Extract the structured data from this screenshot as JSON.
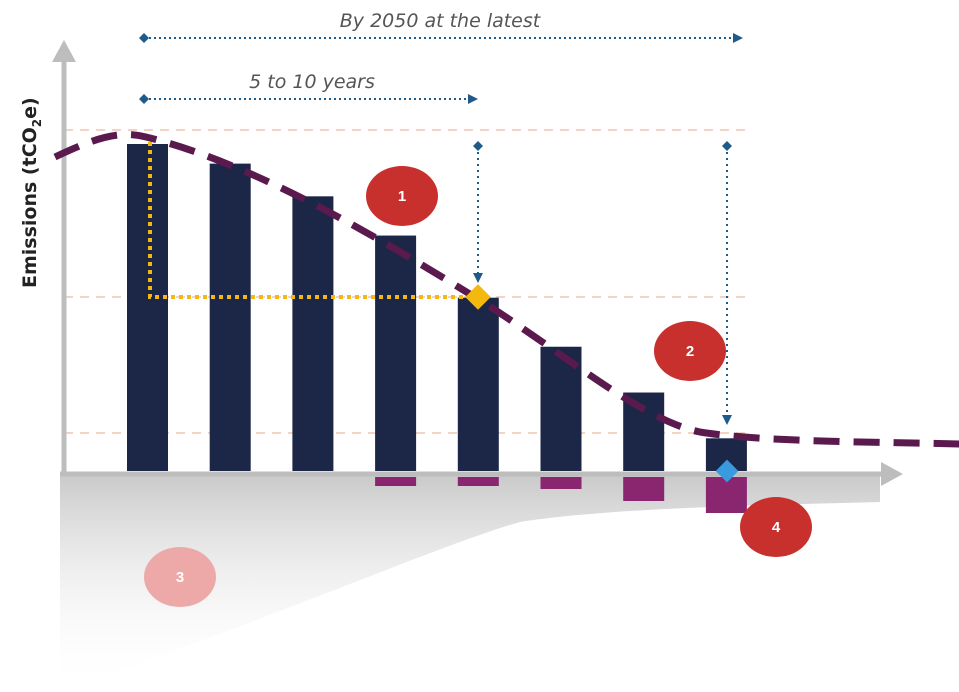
{
  "y_axis_label": "Emissions (tCO",
  "y_axis_label_sub": "2",
  "y_axis_label_end": "e)",
  "annotation_long": "By 2050 at the latest",
  "annotation_short": "5 to 10 years",
  "badges": [
    "1",
    "2",
    "3",
    "4"
  ],
  "bars": [
    100,
    94,
    84,
    72,
    53,
    38,
    24,
    10
  ],
  "removals": [
    3,
    3,
    4,
    8,
    12
  ],
  "colors": {
    "bar": "#1c2747",
    "curve": "#5a1a4e",
    "removal": "#8a2570",
    "badge_main": "#c8302e",
    "badge_faded": "#eda8a8",
    "yellow": "#f5b80e",
    "blue_marker": "#3a9ae0",
    "arrow": "#1e5a8a",
    "axis": "#bdbdbd",
    "guide": "#f4d3c4"
  }
}
